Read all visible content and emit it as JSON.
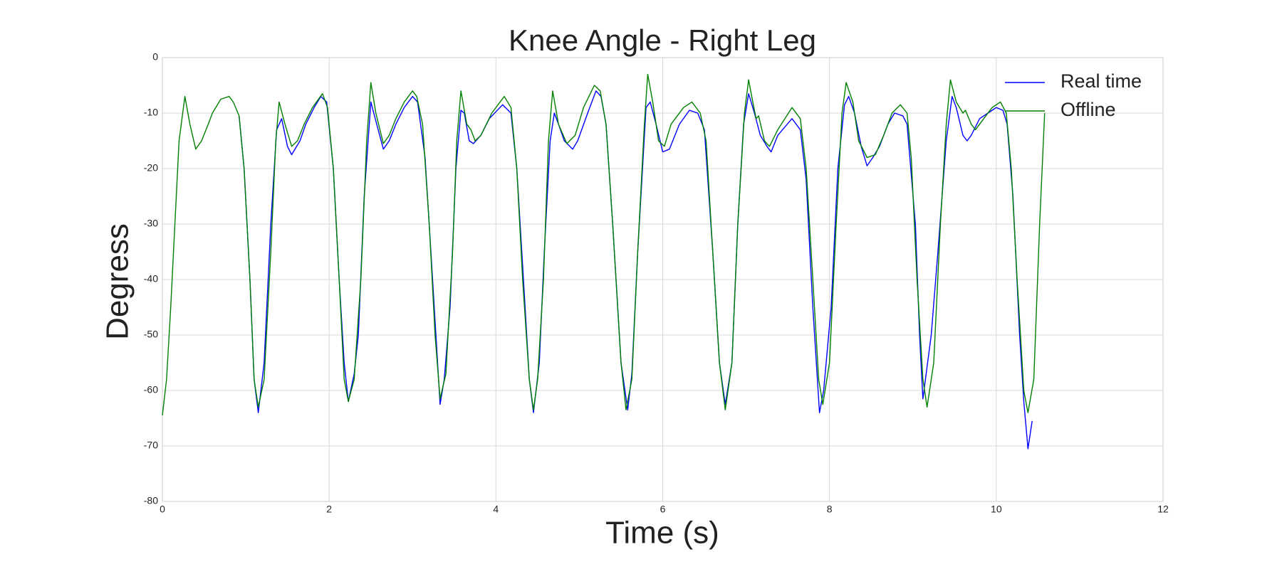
{
  "chart_data": {
    "type": "line",
    "title": "Knee Angle - Right Leg",
    "x_label": "Time (s)",
    "y_label": "Degress",
    "xlim": [
      0,
      12
    ],
    "xticks": [
      0,
      2,
      4,
      6,
      8,
      10,
      12
    ],
    "ylim": [
      -80,
      0
    ],
    "yticks": [
      0,
      -10,
      -20,
      -30,
      -40,
      -50,
      -60,
      -70,
      -80
    ],
    "grid": true,
    "legend": "upper right",
    "series": [
      {
        "name": "Real time",
        "color": "#0000ff",
        "x": [
          0.92,
          0.98,
          1.05,
          1.1,
          1.15,
          1.22,
          1.3,
          1.37,
          1.43,
          1.5,
          1.55,
          1.65,
          1.72,
          1.82,
          1.9,
          1.97,
          2.05,
          2.12,
          2.18,
          2.23,
          2.3,
          2.35,
          2.42,
          2.5,
          2.57,
          2.65,
          2.72,
          2.8,
          2.9,
          3.0,
          3.06,
          3.15,
          3.22,
          3.3,
          3.33,
          3.38,
          3.45,
          3.52,
          3.58,
          3.62,
          3.68,
          3.73,
          3.82,
          3.92,
          4.08,
          4.18,
          4.25,
          4.33,
          4.4,
          4.45,
          4.52,
          4.58,
          4.65,
          4.7,
          4.75,
          4.82,
          4.92,
          4.98,
          5.1,
          5.2,
          5.26,
          5.32,
          5.4,
          5.5,
          5.58,
          5.63,
          5.7,
          5.8,
          5.85,
          5.92,
          6.0,
          6.08,
          6.2,
          6.32,
          6.42,
          6.5,
          6.6,
          6.68,
          6.75,
          6.83,
          6.9,
          6.97,
          7.03,
          7.1,
          7.17,
          7.25,
          7.3,
          7.38,
          7.55,
          7.65,
          7.72,
          7.8,
          7.88,
          7.93,
          8.02,
          8.1,
          8.18,
          8.23,
          8.3,
          8.38,
          8.45,
          8.52,
          8.6,
          8.7,
          8.78,
          8.88,
          8.93,
          9.03,
          9.08,
          9.12,
          9.22,
          9.3,
          9.4,
          9.47,
          9.52,
          9.6,
          9.65,
          9.7,
          9.8,
          9.9,
          10.0,
          10.08,
          10.13,
          10.2,
          10.28,
          10.33,
          10.38,
          10.43
        ],
        "values": [
          -10.5,
          -20,
          -40,
          -58,
          -64,
          -55,
          -30,
          -13,
          -11,
          -16,
          -17.5,
          -15,
          -12,
          -9,
          -7,
          -8,
          -20,
          -40,
          -55,
          -62,
          -57,
          -50,
          -25,
          -8,
          -12,
          -16.5,
          -15,
          -12,
          -9,
          -7,
          -8,
          -18,
          -35,
          -55,
          -62.5,
          -58,
          -45,
          -20,
          -9.5,
          -10,
          -15,
          -15.5,
          -14,
          -11,
          -8.5,
          -10,
          -20,
          -40,
          -58,
          -64,
          -55,
          -35,
          -15,
          -10,
          -12,
          -15,
          -16.5,
          -15,
          -10,
          -6,
          -7,
          -12,
          -30,
          -55,
          -63.5,
          -57,
          -35,
          -9,
          -8,
          -12,
          -17,
          -16.5,
          -12,
          -9.5,
          -10,
          -13,
          -35,
          -55,
          -62.5,
          -55,
          -30,
          -12,
          -6.5,
          -10,
          -14,
          -16,
          -17,
          -14,
          -11,
          -13,
          -22,
          -45,
          -64,
          -60,
          -45,
          -20,
          -8.5,
          -7,
          -10,
          -16,
          -19.5,
          -18,
          -16,
          -12,
          -10,
          -10.5,
          -12,
          -30,
          -50,
          -61.5,
          -50,
          -35,
          -15,
          -7,
          -9,
          -14,
          -15,
          -14,
          -11,
          -10,
          -9,
          -9.5,
          -12,
          -25,
          -50,
          -62,
          -70.5,
          -65.5
        ]
      },
      {
        "name": "Offline",
        "color": "#008000",
        "x": [
          0,
          0.05,
          0.1,
          0.15,
          0.2,
          0.27,
          0.33,
          0.4,
          0.47,
          0.55,
          0.6,
          0.7,
          0.8,
          0.85,
          0.92,
          0.98,
          1.05,
          1.1,
          1.15,
          1.22,
          1.3,
          1.36,
          1.4,
          1.47,
          1.55,
          1.62,
          1.7,
          1.8,
          1.92,
          1.98,
          2.05,
          2.12,
          2.18,
          2.23,
          2.3,
          2.38,
          2.45,
          2.5,
          2.56,
          2.65,
          2.72,
          2.8,
          2.9,
          3.0,
          3.05,
          3.12,
          3.2,
          3.27,
          3.33,
          3.4,
          3.48,
          3.53,
          3.58,
          3.65,
          3.7,
          3.75,
          3.82,
          3.95,
          4.1,
          4.18,
          4.25,
          4.32,
          4.4,
          4.45,
          4.5,
          4.57,
          4.63,
          4.68,
          4.75,
          4.85,
          4.95,
          5.05,
          5.18,
          5.25,
          5.32,
          5.4,
          5.5,
          5.56,
          5.63,
          5.7,
          5.78,
          5.82,
          5.88,
          5.95,
          6.02,
          6.1,
          6.25,
          6.35,
          6.45,
          6.52,
          6.6,
          6.68,
          6.75,
          6.83,
          6.9,
          6.98,
          7.03,
          7.08,
          7.12,
          7.15,
          7.22,
          7.28,
          7.38,
          7.55,
          7.65,
          7.72,
          7.8,
          7.87,
          7.92,
          8.0,
          8.08,
          8.15,
          8.2,
          8.28,
          8.35,
          8.45,
          8.55,
          8.65,
          8.75,
          8.85,
          8.93,
          8.98,
          9.05,
          9.12,
          9.17,
          9.25,
          9.33,
          9.4,
          9.45,
          9.52,
          9.6,
          9.63,
          9.7,
          9.75,
          9.85,
          9.95,
          10.05,
          10.12,
          10.18,
          10.25,
          10.33,
          10.38,
          10.45,
          10.52,
          10.58
        ],
        "values": [
          -64.5,
          -58,
          -45,
          -30,
          -15,
          -7,
          -12,
          -16.5,
          -15,
          -12,
          -10,
          -7.5,
          -7,
          -8,
          -10.5,
          -20,
          -40,
          -58,
          -63,
          -58,
          -35,
          -15,
          -8,
          -12,
          -16,
          -15,
          -12,
          -9,
          -6.5,
          -9,
          -20,
          -40,
          -58,
          -62,
          -58,
          -40,
          -15,
          -4.5,
          -10,
          -15.5,
          -14,
          -11,
          -8,
          -6,
          -7,
          -12,
          -30,
          -50,
          -61.5,
          -57,
          -35,
          -15,
          -6,
          -12,
          -13,
          -15,
          -14,
          -10,
          -7,
          -9,
          -20,
          -40,
          -58,
          -63.5,
          -58,
          -40,
          -15,
          -6,
          -12,
          -15.5,
          -14,
          -9,
          -5,
          -6,
          -12,
          -30,
          -55,
          -63.5,
          -58,
          -35,
          -12,
          -3,
          -8,
          -15,
          -16,
          -12,
          -9,
          -8,
          -10,
          -15,
          -35,
          -55,
          -63.5,
          -55,
          -30,
          -10,
          -4,
          -8,
          -11,
          -10.5,
          -15,
          -16,
          -13,
          -9,
          -11,
          -20,
          -40,
          -58,
          -62.5,
          -55,
          -30,
          -10,
          -4.5,
          -8,
          -15,
          -18,
          -17.5,
          -14,
          -10,
          -8.5,
          -10,
          -18,
          -40,
          -58,
          -63,
          -55,
          -30,
          -12,
          -4,
          -8,
          -10,
          -9.5,
          -12,
          -13,
          -11,
          -9,
          -8,
          -10,
          -20,
          -40,
          -60,
          -64,
          -58,
          -30,
          -10
        ]
      }
    ]
  }
}
